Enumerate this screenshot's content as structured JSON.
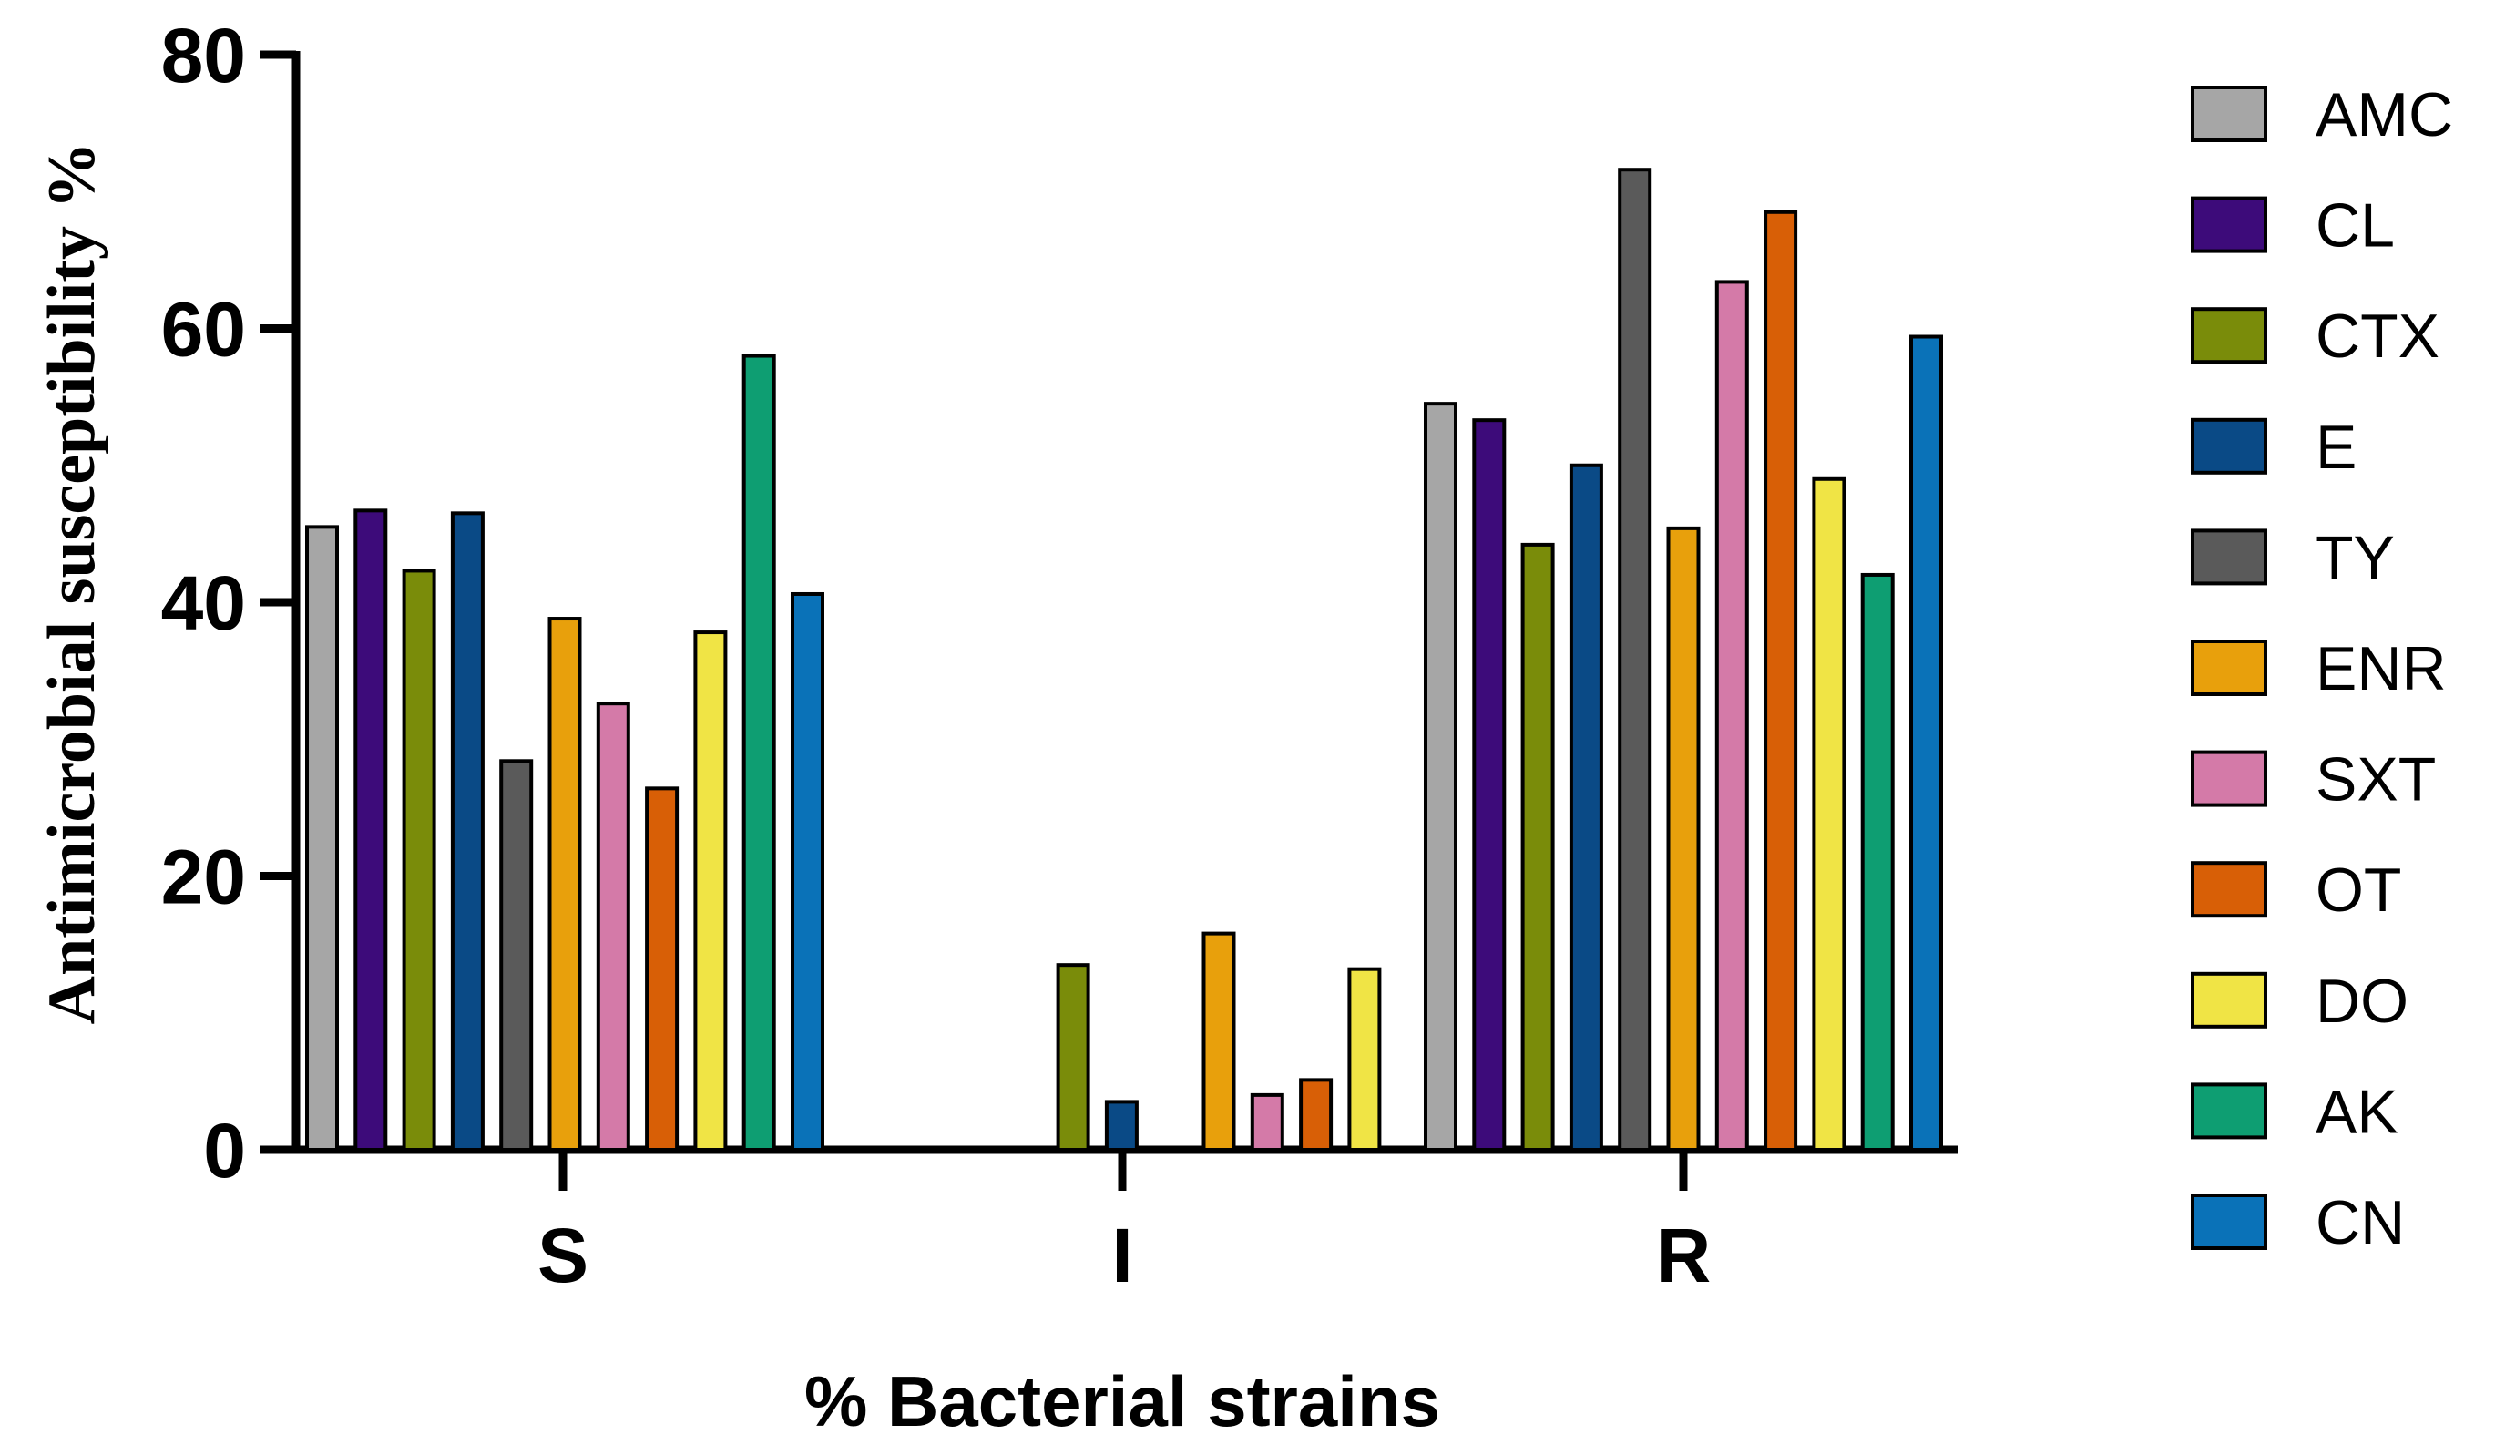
{
  "chart_data": {
    "type": "bar",
    "title": "",
    "xlabel": "% Bacterial strains",
    "ylabel": "Antimicrobial susceptibility %",
    "ylim": [
      0,
      80
    ],
    "yticks": [
      0,
      20,
      40,
      60,
      80
    ],
    "ytick_labels": [
      "0",
      "20",
      "40",
      "60",
      "80"
    ],
    "categories": [
      "S",
      "I",
      "R"
    ],
    "legend_position": "right",
    "grid": false,
    "series": [
      {
        "name": "AMC",
        "color": "#a6a6a6",
        "values": [
          45.5,
          0,
          54.5
        ]
      },
      {
        "name": "CL",
        "color": "#3d0b7a",
        "values": [
          46.7,
          0,
          53.3
        ]
      },
      {
        "name": "CTX",
        "color": "#7a8c0a",
        "values": [
          42.3,
          13.5,
          44.2
        ]
      },
      {
        "name": "E",
        "color": "#0a4a86",
        "values": [
          46.5,
          3.5,
          50.0
        ]
      },
      {
        "name": "TY",
        "color": "#5a5a5a",
        "values": [
          28.4,
          0,
          71.6
        ]
      },
      {
        "name": "ENR",
        "color": "#e8a00c",
        "values": [
          38.8,
          15.8,
          45.4
        ]
      },
      {
        "name": "SXT",
        "color": "#d47aa8",
        "values": [
          32.6,
          4.0,
          63.4
        ]
      },
      {
        "name": "OT",
        "color": "#d85f06",
        "values": [
          26.4,
          5.1,
          68.5
        ]
      },
      {
        "name": "DO",
        "color": "#f0e445",
        "values": [
          37.8,
          13.2,
          49.0
        ]
      },
      {
        "name": "AK",
        "color": "#0e9e72",
        "values": [
          58.0,
          0,
          42.0
        ]
      },
      {
        "name": "CN",
        "color": "#0a72b8",
        "values": [
          40.6,
          0,
          59.4
        ]
      }
    ]
  }
}
